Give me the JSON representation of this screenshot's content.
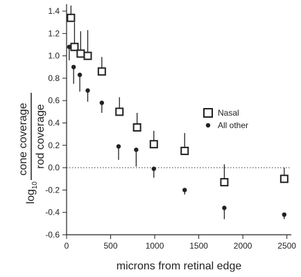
{
  "chart_data": {
    "type": "scatter",
    "xlabel": "microns from retinal edge",
    "ylabel": {
      "prefix": "log",
      "subscript": "10",
      "numerator": "cone coverage",
      "denominator": "rod coverage"
    },
    "xlim": [
      0,
      2550
    ],
    "ylim": [
      -0.6,
      1.45
    ],
    "x_ticks": [
      0,
      500,
      1000,
      1500,
      2000,
      2500
    ],
    "y_ticks": [
      -0.6,
      -0.4,
      -0.2,
      0.0,
      0.2,
      0.4,
      0.6,
      0.8,
      1.0,
      1.2,
      1.4
    ],
    "y_tick_labels": [
      "-0.6",
      "-0.4",
      "-0.2",
      "0.0",
      "0.2",
      "0.4",
      "0.6",
      "0.8",
      "1.0",
      "1.2",
      "1.4"
    ],
    "reference_line": {
      "y": 0.0,
      "style": "dotted"
    },
    "legend_position": "right",
    "series": [
      {
        "name": "Nasal",
        "marker": "open-square",
        "color": "#222222",
        "error_direction": "up",
        "x": [
          50,
          90,
          160,
          240,
          400,
          600,
          800,
          990,
          1340,
          1790,
          2470
        ],
        "y": [
          1.34,
          1.08,
          1.02,
          1.0,
          0.86,
          0.5,
          0.36,
          0.21,
          0.15,
          -0.13,
          -0.1
        ],
        "err": [
          0.11,
          0.22,
          0.2,
          0.23,
          0.13,
          0.13,
          0.13,
          0.12,
          0.16,
          0.16,
          0.1
        ]
      },
      {
        "name": "All other",
        "marker": "filled-circle",
        "color": "#222222",
        "error_direction": "down",
        "x": [
          30,
          80,
          150,
          240,
          400,
          590,
          790,
          990,
          1340,
          1790,
          2470
        ],
        "y": [
          1.08,
          0.9,
          0.83,
          0.69,
          0.58,
          0.19,
          0.16,
          -0.01,
          -0.2,
          -0.36,
          -0.42
        ],
        "err": [
          0.12,
          0.15,
          0.15,
          0.1,
          0.09,
          0.12,
          0.15,
          0.08,
          0.04,
          0.1,
          0.04
        ]
      }
    ]
  }
}
